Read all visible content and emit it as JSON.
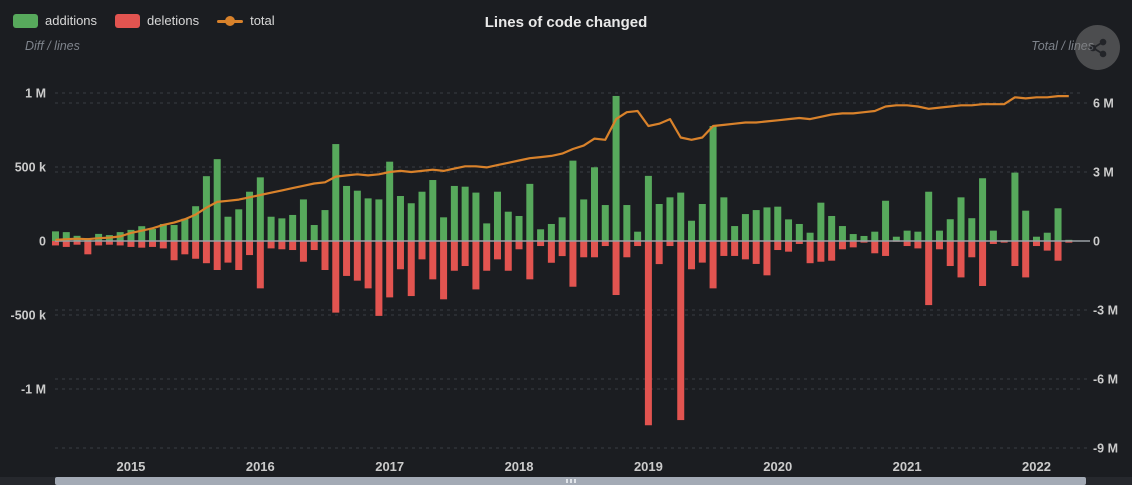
{
  "header": {
    "title": "Lines of code changed"
  },
  "legend": {
    "items": [
      {
        "label": "additions",
        "color": "#57a95c",
        "marker": "rect"
      },
      {
        "label": "deletions",
        "color": "#e25450",
        "marker": "rect"
      },
      {
        "label": "total",
        "color": "#d9822b",
        "marker": "line-dot"
      }
    ]
  },
  "axes": {
    "left_title": "Diff / lines",
    "right_title": "Total / lines",
    "left_ticks": [
      {
        "label": "1 M",
        "value_k": 1000
      },
      {
        "label": "500 k",
        "value_k": 500
      },
      {
        "label": "0",
        "value_k": 0
      },
      {
        "label": "-500 k",
        "value_k": -500
      },
      {
        "label": "-1 M",
        "value_k": -1000
      }
    ],
    "right_ticks": [
      {
        "label": "6 M",
        "value_m": 6
      },
      {
        "label": "3 M",
        "value_m": 3
      },
      {
        "label": "0",
        "value_m": 0
      },
      {
        "label": "-3 M",
        "value_m": -3
      },
      {
        "label": "-6 M",
        "value_m": -6
      },
      {
        "label": "-9 M",
        "value_m": -9
      }
    ],
    "x_ticks": [
      "2015",
      "2016",
      "2017",
      "2018",
      "2019",
      "2020",
      "2021",
      "2022"
    ]
  },
  "icons": {
    "corner": "share-icon"
  },
  "colors": {
    "background": "#1b1d21",
    "additions": "#57a95c",
    "deletions": "#e25450",
    "total_line": "#d9822b",
    "grid": "#3a3d42",
    "zero_line": "#9aa0a6",
    "tick_text": "#cbcbcb",
    "scrollbar": "#a3aab5"
  },
  "chart_data": {
    "type": "bar+line",
    "title": "Lines of code changed",
    "left_axis_label": "Diff / lines",
    "right_axis_label": "Total / lines",
    "left_ylim_k": [
      -1350,
      1100
    ],
    "right_ylim_m": [
      -9,
      6.6
    ],
    "grid": "dashed horizontal",
    "legend_position": "top-left",
    "x_months": [
      "2014-06",
      "2014-07",
      "2014-08",
      "2014-09",
      "2014-10",
      "2014-11",
      "2014-12",
      "2015-01",
      "2015-02",
      "2015-03",
      "2015-04",
      "2015-05",
      "2015-06",
      "2015-07",
      "2015-08",
      "2015-09",
      "2015-10",
      "2015-11",
      "2015-12",
      "2016-01",
      "2016-02",
      "2016-03",
      "2016-04",
      "2016-05",
      "2016-06",
      "2016-07",
      "2016-08",
      "2016-09",
      "2016-10",
      "2016-11",
      "2016-12",
      "2017-01",
      "2017-02",
      "2017-03",
      "2017-04",
      "2017-05",
      "2017-06",
      "2017-07",
      "2017-08",
      "2017-09",
      "2017-10",
      "2017-11",
      "2017-12",
      "2018-01",
      "2018-02",
      "2018-03",
      "2018-04",
      "2018-05",
      "2018-06",
      "2018-07",
      "2018-08",
      "2018-09",
      "2018-10",
      "2018-11",
      "2018-12",
      "2019-01",
      "2019-02",
      "2019-03",
      "2019-04",
      "2019-05",
      "2019-06",
      "2019-07",
      "2019-08",
      "2019-09",
      "2019-10",
      "2019-11",
      "2019-12",
      "2020-01",
      "2020-02",
      "2020-03",
      "2020-04",
      "2020-05",
      "2020-06",
      "2020-07",
      "2020-08",
      "2020-09",
      "2020-10",
      "2020-11",
      "2020-12",
      "2021-01",
      "2021-02",
      "2021-03",
      "2021-04",
      "2021-05",
      "2021-06",
      "2021-07",
      "2021-08",
      "2021-09",
      "2021-10",
      "2021-11",
      "2021-12",
      "2022-01",
      "2022-02",
      "2022-03",
      "2022-04"
    ],
    "series": [
      {
        "name": "additions",
        "unit": "k lines",
        "axis": "left",
        "values": [
          65,
          60,
          35,
          20,
          48,
          40,
          60,
          75,
          100,
          81,
          115,
          108,
          150,
          235,
          438,
          553,
          164,
          214,
          333,
          430,
          164,
          153,
          176,
          281,
          108,
          209,
          655,
          372,
          340,
          288,
          281,
          536,
          304,
          255,
          333,
          412,
          160,
          372,
          367,
          327,
          119,
          333,
          198,
          169,
          386,
          79,
          115,
          160,
          543,
          281,
          498,
          243,
          980,
          243,
          63,
          440,
          250,
          295,
          327,
          137,
          250,
          777,
          295,
          101,
          182,
          209,
          227,
          232,
          146,
          115,
          56,
          259,
          169,
          101,
          47,
          34,
          63,
          272,
          29,
          70,
          63,
          333,
          70,
          147,
          295,
          154,
          424,
          70,
          5,
          462,
          205,
          29,
          56,
          221,
          8
        ]
      },
      {
        "name": "deletions",
        "unit": "k lines",
        "axis": "left",
        "sign": "negative",
        "values": [
          30,
          40,
          25,
          90,
          30,
          25,
          30,
          40,
          45,
          40,
          50,
          130,
          90,
          120,
          150,
          196,
          146,
          196,
          95,
          320,
          50,
          56,
          61,
          140,
          61,
          196,
          484,
          236,
          268,
          320,
          506,
          381,
          191,
          372,
          124,
          259,
          394,
          201,
          169,
          327,
          201,
          124,
          201,
          56,
          259,
          34,
          147,
          102,
          309,
          110,
          110,
          34,
          365,
          110,
          34,
          1245,
          156,
          34,
          1210,
          191,
          146,
          320,
          101,
          101,
          124,
          155,
          232,
          61,
          72,
          20,
          150,
          140,
          133,
          56,
          43,
          11,
          83,
          101,
          5,
          34,
          50,
          433,
          56,
          169,
          246,
          110,
          304,
          20,
          11,
          169,
          246,
          34,
          65,
          133,
          11
        ]
      },
      {
        "name": "total",
        "unit": "M lines",
        "axis": "right",
        "values": [
          0.05,
          0.08,
          0.1,
          0.08,
          0.12,
          0.15,
          0.2,
          0.35,
          0.45,
          0.55,
          0.7,
          0.8,
          0.95,
          1.15,
          1.45,
          1.7,
          1.75,
          1.8,
          1.9,
          2.0,
          2.1,
          2.2,
          2.3,
          2.4,
          2.5,
          2.55,
          2.8,
          2.85,
          2.9,
          2.85,
          2.9,
          3.0,
          3.05,
          3.0,
          3.05,
          3.1,
          3.05,
          3.15,
          3.25,
          3.25,
          3.2,
          3.3,
          3.4,
          3.5,
          3.6,
          3.65,
          3.7,
          3.8,
          4.0,
          4.15,
          4.45,
          4.4,
          5.3,
          5.6,
          5.65,
          5.0,
          5.1,
          5.3,
          4.5,
          4.4,
          4.5,
          5.0,
          5.05,
          5.1,
          5.15,
          5.15,
          5.2,
          5.25,
          5.3,
          5.35,
          5.3,
          5.4,
          5.5,
          5.55,
          5.55,
          5.6,
          5.65,
          5.85,
          5.9,
          5.9,
          5.85,
          5.75,
          5.8,
          5.85,
          5.9,
          5.9,
          5.95,
          5.95,
          5.95,
          6.25,
          6.2,
          6.25,
          6.25,
          6.3,
          6.3
        ]
      }
    ]
  },
  "scrollbar": {
    "present": true
  }
}
